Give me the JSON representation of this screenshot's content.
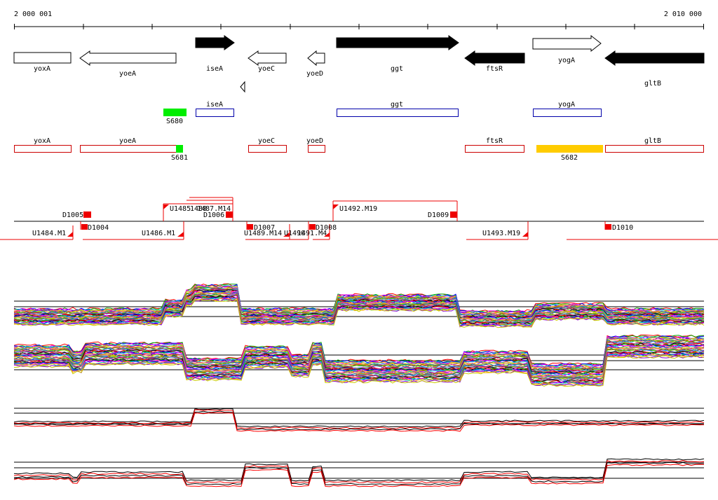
{
  "ruler": {
    "start_label": "2 000 001",
    "end_label": "2 010 000"
  },
  "tracks": {
    "genes": [
      {
        "name": "yoxA",
        "strand": "+",
        "style": "outline"
      },
      {
        "name": "yoeA",
        "strand": "-",
        "style": "outline"
      },
      {
        "name": "iseA",
        "strand": "+",
        "style": "filled"
      },
      {
        "name": "yoeC",
        "strand": "-",
        "style": "outline"
      },
      {
        "name": "yoeD",
        "strand": "-",
        "style": "outline"
      },
      {
        "name": "ggt",
        "strand": "+",
        "style": "filled"
      },
      {
        "name": "ftsR",
        "strand": "-",
        "style": "filled"
      },
      {
        "name": "yogA",
        "strand": "+",
        "style": "outline"
      },
      {
        "name": "gltB",
        "strand": "-",
        "style": "filled"
      }
    ],
    "upstream_labels": [
      "iseA",
      "ggt",
      "yogA"
    ],
    "promoter_labels": [
      "S680",
      "S681",
      "S682"
    ],
    "transcript_labels": [
      "yoxA",
      "yoeA",
      "yoeC",
      "yoeD",
      "ftsR",
      "gltB"
    ],
    "upshift_labels": [
      "U1484.M1",
      "U1485",
      "U1486.M1",
      "U1489.M14",
      "U1492.M19",
      "U1493.M19",
      "1488",
      "1487.M14",
      "U1490",
      "1491.M4"
    ],
    "downshift_labels": [
      "D1004",
      "D1005",
      "D1006",
      "D1007",
      "D1008",
      "D1009",
      "D1010"
    ]
  },
  "colors": {
    "gene_fill": "#000000",
    "transcript_outline": "#cc0000",
    "upstream_outline": "#0000aa",
    "promoter_green": "#00ee00",
    "promoter_yellow": "#ffcc00",
    "marker_red": "#ee0000",
    "expression_black": "#000000",
    "expression_red": "#ff0000"
  }
}
